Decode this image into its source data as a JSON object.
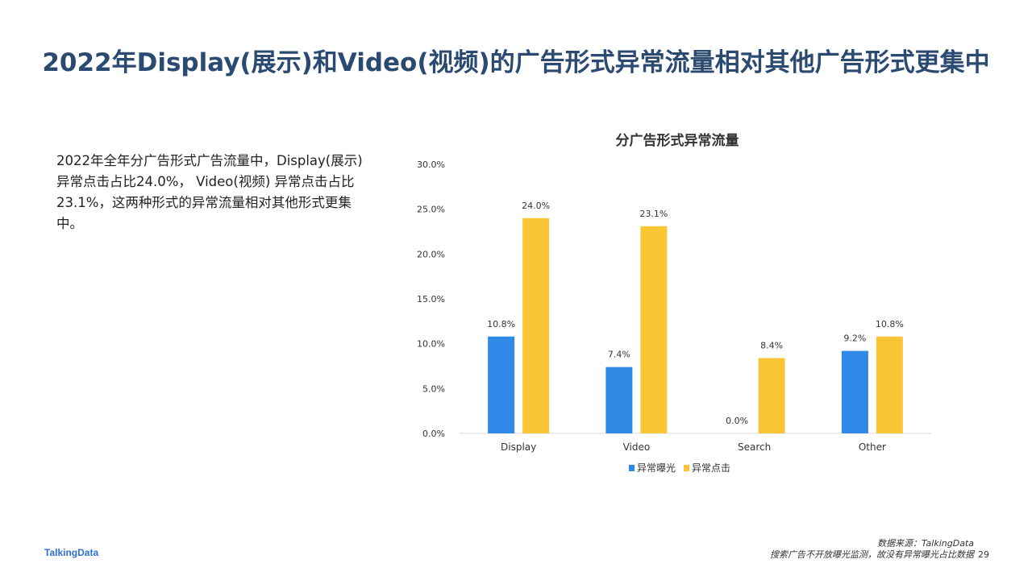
{
  "title": "2022年Display(展示)和Video(视频)的广告形式异常流量相对其他广告形式更集中",
  "summary": "2022年全年分广告形式广告流量中，Display(展示)异常点击占比24.0%， Video(视频) 异常点击占比23.1%，这两种形式的异常流量相对其他形式更集中。",
  "footer": {
    "logo": "TalkingData",
    "source": "数据来源：TalkingData",
    "note": "搜索广告不开放曝光监测，故没有异常曝光占比数据",
    "page_number": "29"
  },
  "colors": {
    "title": "#2b4a72",
    "series_exposure": "#2e8ae6",
    "series_click": "#f8c634",
    "logo": "#2f6fd6"
  },
  "chart_data": {
    "type": "bar",
    "title": "分广告形式异常流量",
    "categories": [
      "Display",
      "Video",
      "Search",
      "Other"
    ],
    "series": [
      {
        "name": "异常曝光",
        "values": [
          10.8,
          7.4,
          0.0,
          9.2
        ],
        "labels": [
          "10.8%",
          "7.4%",
          "0.0%",
          "9.2%"
        ]
      },
      {
        "name": "异常点击",
        "values": [
          24.0,
          23.1,
          8.4,
          10.8
        ],
        "labels": [
          "24.0%",
          "23.1%",
          "8.4%",
          "10.8%"
        ]
      }
    ],
    "yticks": [
      "0.0%",
      "5.0%",
      "10.0%",
      "15.0%",
      "20.0%",
      "25.0%",
      "30.0%"
    ],
    "ylim": [
      0,
      30
    ],
    "grid": false,
    "legend_position": "bottom"
  }
}
